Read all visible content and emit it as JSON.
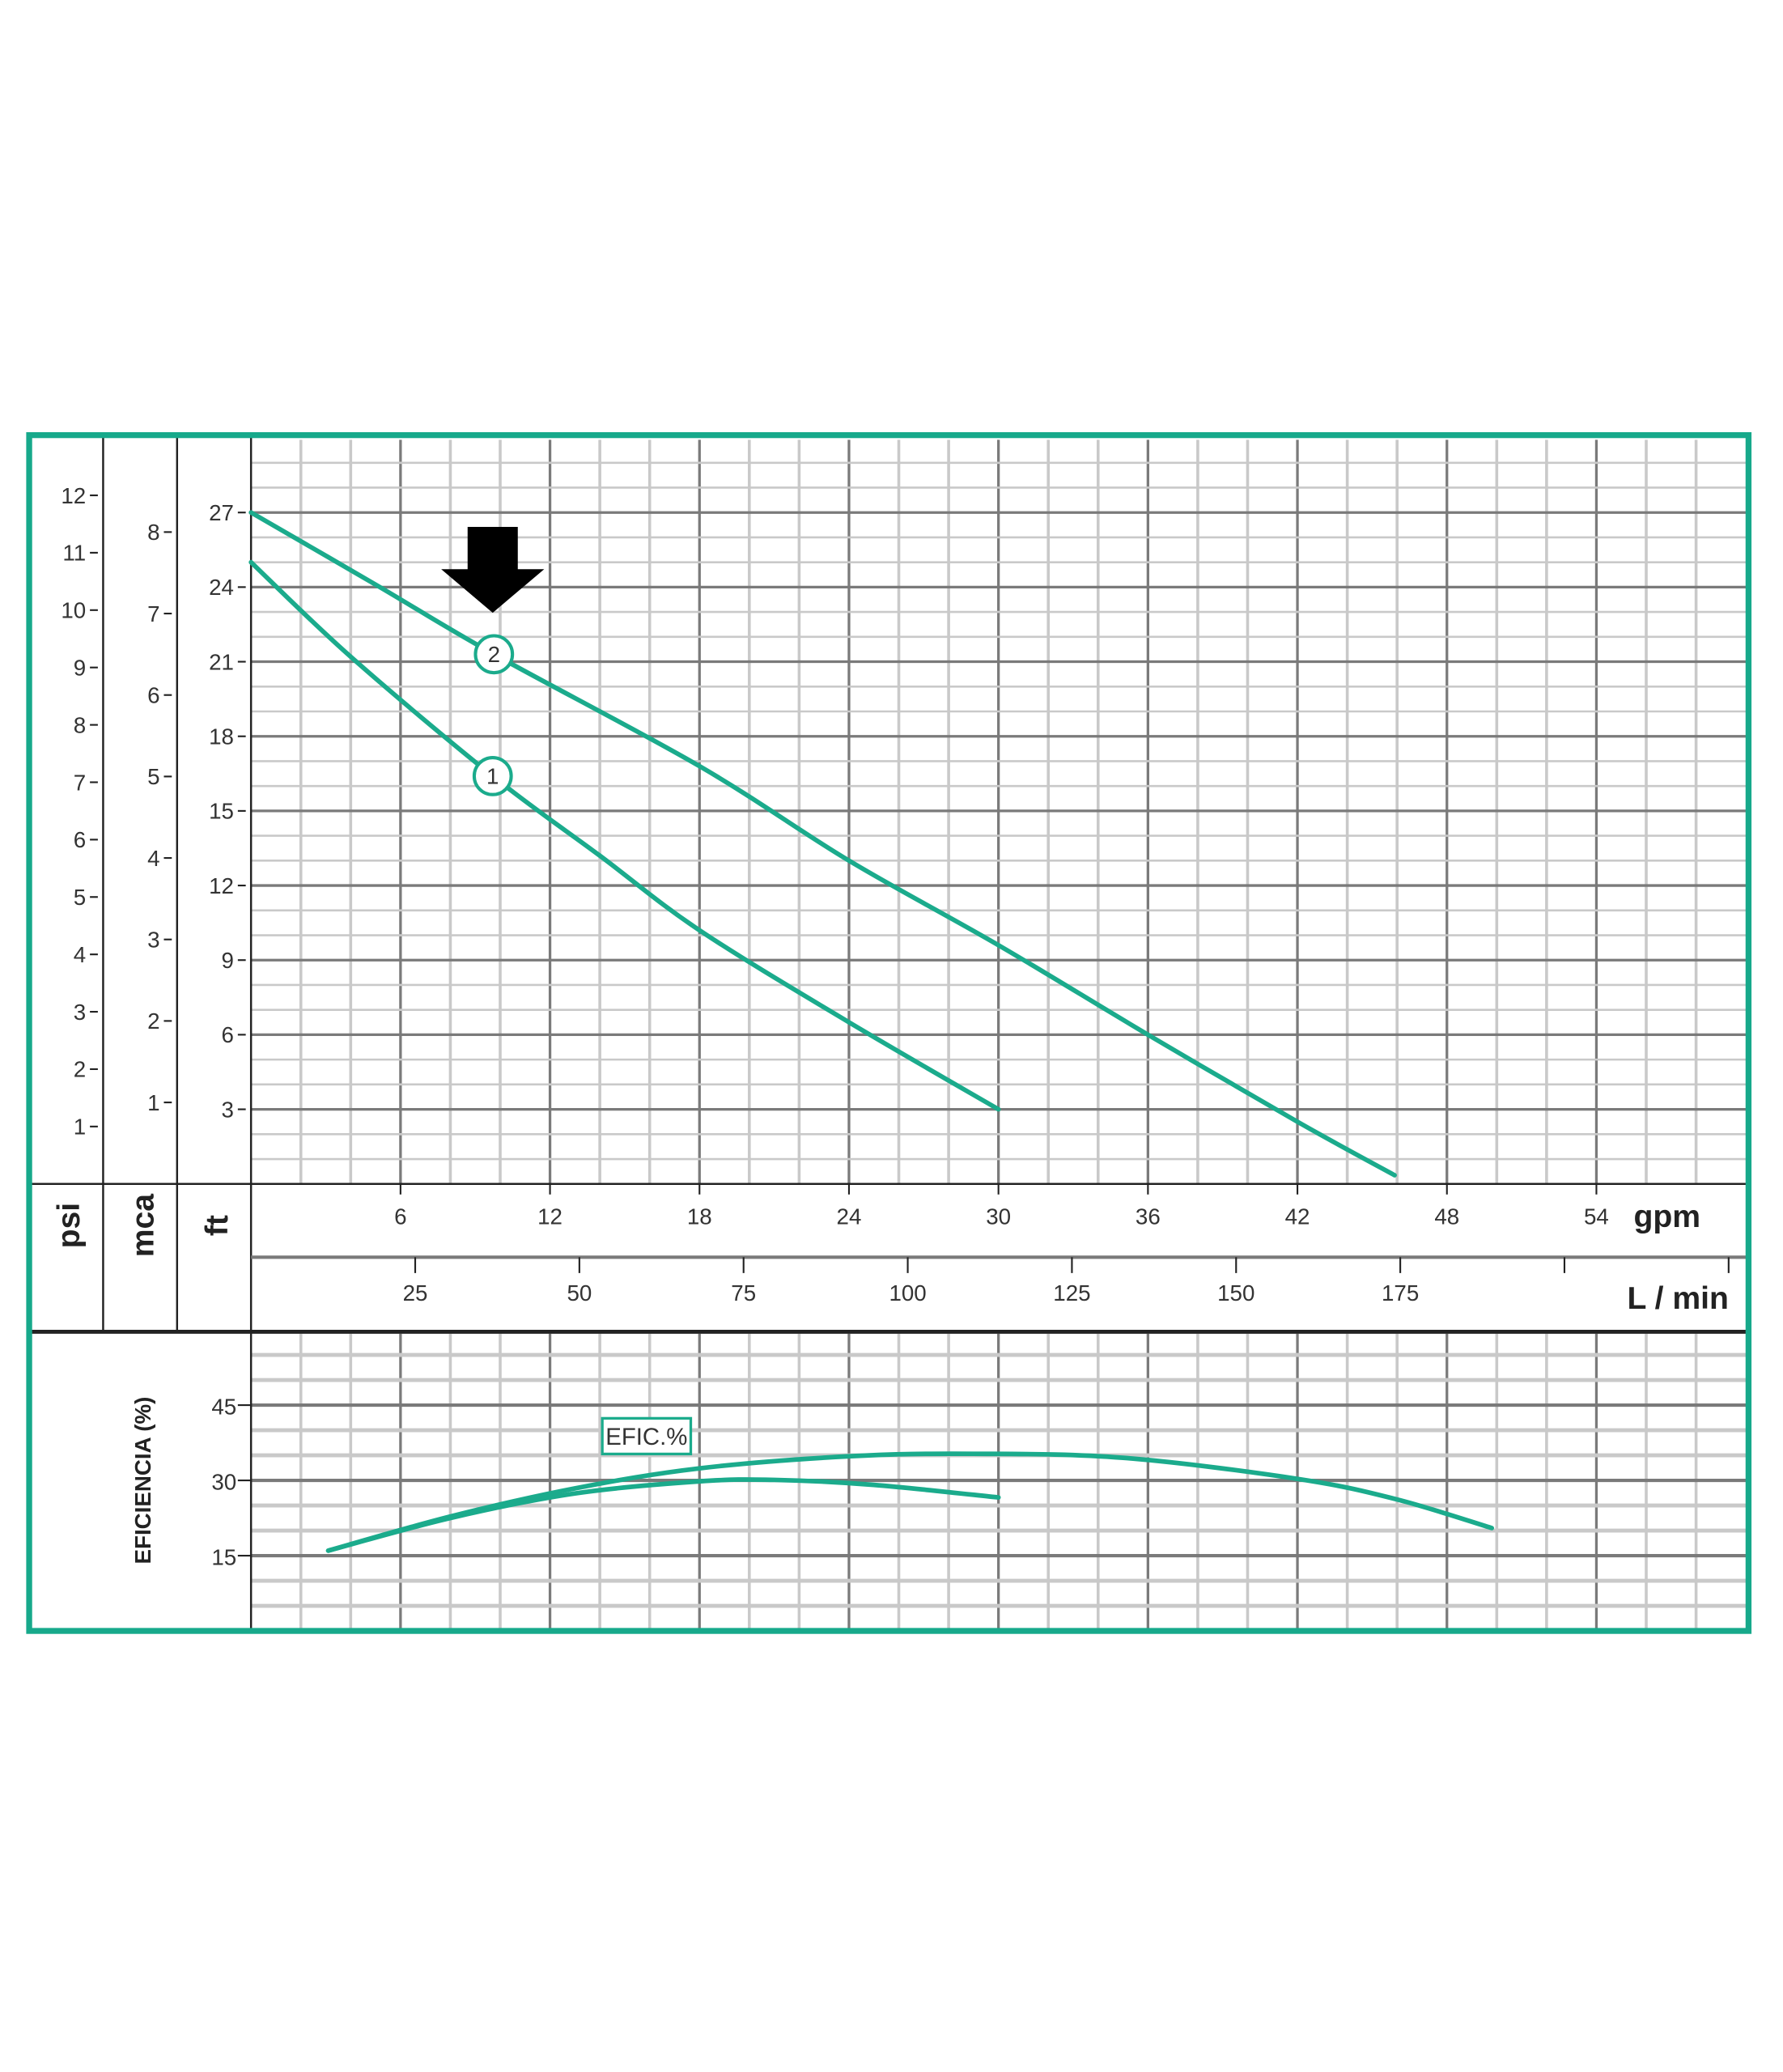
{
  "colors": {
    "frame": "#17a98b",
    "curve": "#1bab8c",
    "grid_minor": "#c9c9c9",
    "grid_major": "#7a7a7a",
    "axis": "#222222",
    "arrow": "#000000"
  },
  "chart_data": [
    {
      "type": "line",
      "title": "",
      "x_axes": [
        {
          "unit": "gpm",
          "range": [
            0,
            60
          ],
          "ticks": [
            6,
            12,
            18,
            24,
            30,
            36,
            42,
            48,
            54
          ]
        },
        {
          "unit": "L / min",
          "range": [
            0,
            227
          ],
          "ticks": [
            25,
            50,
            75,
            100,
            125,
            150,
            175
          ],
          "unlabeled_ticks": [
            200,
            225
          ]
        }
      ],
      "y_axes": [
        {
          "unit": "psi",
          "range": [
            0,
            12.8
          ],
          "ticks": [
            1,
            2,
            3,
            4,
            5,
            6,
            7,
            8,
            9,
            10,
            11,
            12
          ]
        },
        {
          "unit": "mca",
          "range": [
            0,
            9
          ],
          "ticks": [
            1,
            2,
            3,
            4,
            5,
            6,
            7,
            8
          ]
        },
        {
          "unit": "ft",
          "range": [
            0,
            29.5
          ],
          "ticks": [
            3,
            6,
            9,
            12,
            15,
            18,
            21,
            24,
            27
          ]
        }
      ],
      "grid": true,
      "series": [
        {
          "name": "1",
          "x_unit": "gpm",
          "y_unit": "ft",
          "points": [
            [
              0,
              25
            ],
            [
              4,
              21.2
            ],
            [
              9.7,
              16.4
            ],
            [
              14,
              13.2
            ],
            [
              18,
              10.2
            ],
            [
              24,
              6.5
            ],
            [
              30,
              3.0
            ]
          ]
        },
        {
          "name": "2",
          "x_unit": "gpm",
          "y_unit": "ft",
          "points": [
            [
              0,
              27
            ],
            [
              5,
              24.1
            ],
            [
              9.75,
              21.3
            ],
            [
              18,
              16.8
            ],
            [
              24,
              13.0
            ],
            [
              30,
              9.6
            ],
            [
              36,
              6.0
            ],
            [
              42,
              2.5
            ],
            [
              45.9,
              0.35
            ]
          ]
        }
      ],
      "markers": [
        {
          "label": "1",
          "x": 9.7,
          "y": 16.4
        },
        {
          "label": "2",
          "x": 9.75,
          "y": 21.3
        }
      ],
      "annotation": {
        "type": "arrow-down",
        "points_to": "2",
        "x": 9.7
      }
    },
    {
      "type": "line",
      "ylabel": "EFICIENCIA (%)",
      "legend_label": "EFIC.%",
      "x_unit": "gpm",
      "xlim": [
        0,
        60
      ],
      "ylim": [
        0,
        58
      ],
      "yticks": [
        15,
        30,
        45
      ],
      "grid": true,
      "series": [
        {
          "points": [
            [
              3.1,
              16
            ],
            [
              8,
              22.5
            ],
            [
              13,
              27.4
            ],
            [
              18,
              29.8
            ],
            [
              21,
              30.1
            ],
            [
              25,
              29.1
            ],
            [
              30,
              26.6
            ]
          ]
        },
        {
          "points": [
            [
              3.1,
              16
            ],
            [
              8,
              22.8
            ],
            [
              13,
              28.4
            ],
            [
              18,
              32.4
            ],
            [
              24,
              34.8
            ],
            [
              29,
              35.3
            ],
            [
              35,
              34.5
            ],
            [
              42,
              30.3
            ],
            [
              46,
              26.2
            ],
            [
              49.8,
              20.5
            ]
          ]
        }
      ]
    }
  ]
}
